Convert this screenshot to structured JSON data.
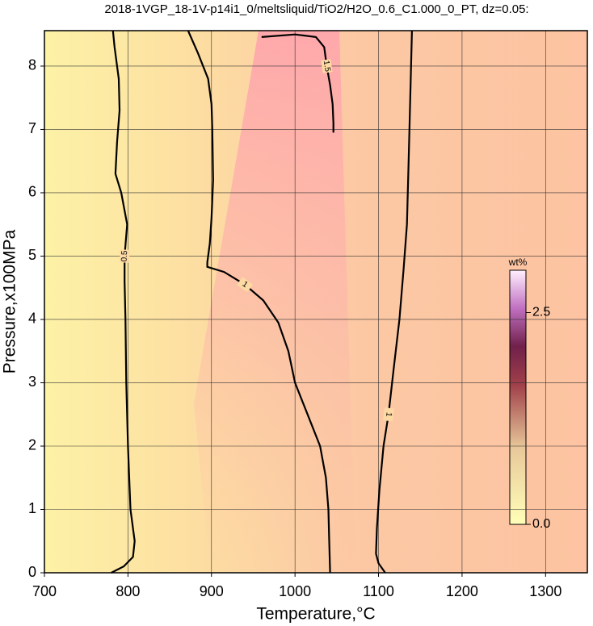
{
  "chart_data": {
    "type": "contour",
    "title": "2018-1VGP_18-1V-p14i1_0/meltsliquid/TiO2/H2O_0.6_C1.000_0_PT, dz=0.05:",
    "x_label": "Temperature,°C",
    "y_label": "Pressure,x100MPa",
    "xlim": [
      700,
      1350
    ],
    "ylim": [
      0,
      8.56
    ],
    "xticks": [
      700,
      800,
      900,
      1000,
      1100,
      1200,
      1300
    ],
    "yticks": [
      0,
      1,
      2,
      3,
      4,
      5,
      6,
      7,
      8
    ],
    "grid": true,
    "contour_color": "#000000",
    "contours": [
      {
        "level": 0.5,
        "x": [
          780,
          795,
          806,
          808,
          803,
          800,
          798,
          797,
          796,
          796,
          799,
          792,
          785,
          787,
          790,
          789,
          784,
          782
        ],
        "y": [
          0,
          0.1,
          0.25,
          0.5,
          1,
          2,
          3,
          4,
          4.6,
          5,
          5.5,
          6,
          6.3,
          6.8,
          7.3,
          7.8,
          8.3,
          8.56
        ]
      },
      {
        "level": 1,
        "x": [
          872,
          884,
          896,
          900,
          901,
          902,
          900,
          898,
          895,
          895,
          915,
          940,
          962,
          980,
          992,
          1000,
          1015,
          1030,
          1037,
          1040,
          1041,
          1042
        ],
        "y": [
          8.56,
          8.2,
          7.8,
          7.4,
          7.0,
          6.2,
          5.6,
          5.2,
          4.9,
          4.83,
          4.75,
          4.55,
          4.3,
          3.95,
          3.5,
          3.0,
          2.5,
          2.0,
          1.5,
          1.0,
          0.5,
          0
        ]
      },
      {
        "level": 1.5,
        "x": [
          960,
          1000,
          1025,
          1035,
          1038,
          1042,
          1045,
          1046,
          1046
        ],
        "y": [
          8.46,
          8.5,
          8.46,
          8.3,
          8.0,
          7.7,
          7.4,
          7.1,
          6.95
        ]
      },
      {
        "level": 1,
        "x": [
          1140,
          1138,
          1136,
          1134,
          1130,
          1125,
          1118,
          1112,
          1106,
          1101,
          1098,
          1097,
          1100,
          1108
        ],
        "y": [
          8.56,
          7.5,
          6.5,
          5.5,
          4.8,
          4.0,
          3.2,
          2.5,
          2.0,
          1.3,
          0.7,
          0.3,
          0.15,
          0
        ]
      }
    ],
    "colorbar": {
      "label": "wt%",
      "lim": [
        0,
        3.0
      ],
      "ticks": [
        {
          "value": 0,
          "label": "0.0"
        },
        2.5
      ]
    }
  }
}
